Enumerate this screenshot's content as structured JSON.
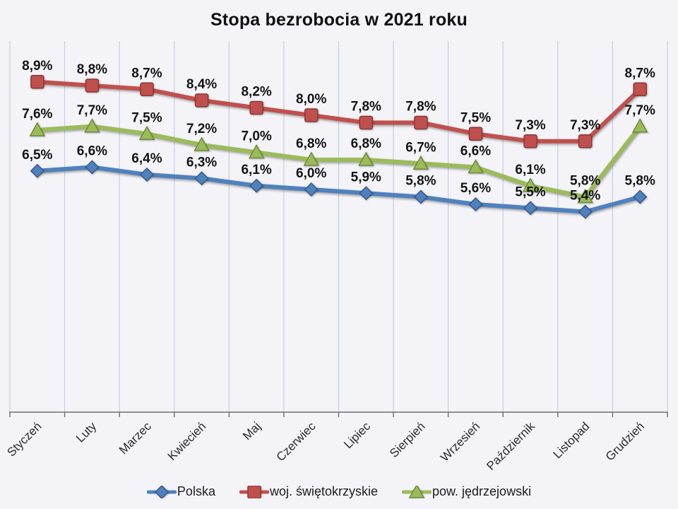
{
  "title": "Stopa bezrobocia w 2021 roku",
  "chart_data": {
    "type": "line",
    "title": "Stopa bezrobocia w 2021 roku",
    "categories": [
      "Styczeń",
      "Luty",
      "Marzec",
      "Kwiecień",
      "Maj",
      "Czerwiec",
      "Lipiec",
      "Sierpień",
      "Wrzesień",
      "Październik",
      "Listopad",
      "Grudzień"
    ],
    "series": [
      {
        "name": "Polska",
        "marker": "diamond",
        "color": "#4f81bd",
        "edge_color": "#35598a",
        "values": [
          6.5,
          6.6,
          6.4,
          6.3,
          6.1,
          6.0,
          5.9,
          5.8,
          5.6,
          5.5,
          5.4,
          5.8
        ],
        "labels": [
          "6,5%",
          "6,6%",
          "6,4%",
          "6,3%",
          "6,1%",
          "6,0%",
          "5,9%",
          "5,8%",
          "5,6%",
          "5,5%",
          "5,4%",
          "5,8%"
        ]
      },
      {
        "name": "woj. świętokrzyskie",
        "marker": "square",
        "color": "#c0504d",
        "edge_color": "#8c3734",
        "values": [
          8.9,
          8.8,
          8.7,
          8.4,
          8.2,
          8.0,
          7.8,
          7.8,
          7.5,
          7.3,
          7.3,
          8.7
        ],
        "labels": [
          "8,9%",
          "8,8%",
          "8,7%",
          "8,4%",
          "8,2%",
          "8,0%",
          "7,8%",
          "7,8%",
          "7,5%",
          "7,3%",
          "7,3%",
          "8,7%"
        ]
      },
      {
        "name": "pow. jędrzejowski",
        "marker": "triangle",
        "color": "#9bbb59",
        "edge_color": "#6f8b3c",
        "values": [
          7.6,
          7.7,
          7.5,
          7.2,
          7.0,
          6.8,
          6.8,
          6.7,
          6.6,
          6.1,
          5.8,
          7.7
        ],
        "labels": [
          "7,6%",
          "7,7%",
          "7,5%",
          "7,2%",
          "7,0%",
          "6,8%",
          "6,8%",
          "6,7%",
          "6,6%",
          "6,1%",
          "5,8%",
          "7,7%"
        ]
      }
    ],
    "ylim": [
      0,
      10
    ],
    "xlabel": "",
    "ylabel": "",
    "y_axis_visible": false,
    "grid": "vertical-only",
    "gridline_color": "#c9cde0",
    "axis_color": "#6e6e6e",
    "label_format": "comma-decimal-percent",
    "legend_position": "bottom-center"
  }
}
